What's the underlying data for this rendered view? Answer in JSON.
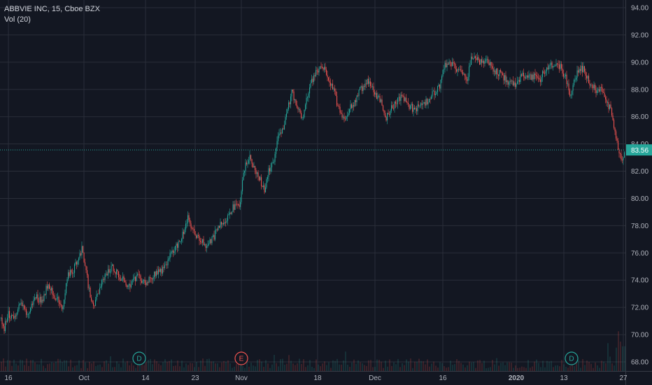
{
  "legend": {
    "symbol_line": "ABBVIE INC, 15, Cboe BZX",
    "volume_line": "Vol (20)"
  },
  "colors": {
    "background": "#131722",
    "grid": "#2a2e39",
    "up": "#26a69a",
    "down": "#ef5350",
    "axis_text": "#b2b5be",
    "price_line": "#26a69a"
  },
  "chart_data": {
    "type": "candlestick",
    "title": "ABBVIE INC, 15, Cboe BZX",
    "y_axis": {
      "ticks": [
        "94.00",
        "92.00",
        "90.00",
        "88.00",
        "86.00",
        "84.00",
        "82.00",
        "80.00",
        "78.00",
        "76.00",
        "74.00",
        "72.00",
        "70.00",
        "68.00"
      ],
      "ylim": [
        67.5,
        94.5
      ],
      "position": "right"
    },
    "x_axis": {
      "ticks": [
        {
          "label": "16",
          "bold": false
        },
        {
          "label": "Oct",
          "bold": false
        },
        {
          "label": "14",
          "bold": false
        },
        {
          "label": "23",
          "bold": false
        },
        {
          "label": "Nov",
          "bold": false
        },
        {
          "label": "18",
          "bold": false
        },
        {
          "label": "Dec",
          "bold": false
        },
        {
          "label": "16",
          "bold": false
        },
        {
          "label": "2020",
          "bold": true
        },
        {
          "label": "13",
          "bold": false
        },
        {
          "label": "27",
          "bold": false
        }
      ]
    },
    "last_price": "83.56",
    "last_price_value": 83.56,
    "grid": true,
    "event_markers": [
      {
        "label": "D",
        "type": "dividend",
        "color": "#26a69a"
      },
      {
        "label": "E",
        "type": "earnings",
        "color": "#ef5350"
      },
      {
        "label": "D",
        "type": "dividend",
        "color": "#26a69a"
      }
    ],
    "price_path_anchors": [
      [
        0,
        71.2
      ],
      [
        5,
        70.2
      ],
      [
        10,
        71.5
      ],
      [
        22,
        71.3
      ],
      [
        30,
        72.5
      ],
      [
        38,
        71.3
      ],
      [
        50,
        72.8
      ],
      [
        60,
        72.5
      ],
      [
        68,
        73.8
      ],
      [
        78,
        72.8
      ],
      [
        90,
        71.9
      ],
      [
        95,
        74.2
      ],
      [
        105,
        74.8
      ],
      [
        112,
        75.8
      ],
      [
        117,
        76.3
      ],
      [
        122,
        74.8
      ],
      [
        127,
        73.2
      ],
      [
        132,
        72.0
      ],
      [
        138,
        72.8
      ],
      [
        148,
        74.2
      ],
      [
        160,
        75.0
      ],
      [
        172,
        74.2
      ],
      [
        183,
        73.6
      ],
      [
        195,
        74.2
      ],
      [
        210,
        73.8
      ],
      [
        220,
        74.5
      ],
      [
        233,
        74.8
      ],
      [
        245,
        76.0
      ],
      [
        258,
        77.0
      ],
      [
        268,
        78.5
      ],
      [
        276,
        77.5
      ],
      [
        285,
        77.0
      ],
      [
        293,
        76.5
      ],
      [
        303,
        77.0
      ],
      [
        313,
        78.0
      ],
      [
        322,
        78.5
      ],
      [
        332,
        79.3
      ],
      [
        342,
        79.5
      ],
      [
        348,
        82.0
      ],
      [
        356,
        83.2
      ],
      [
        364,
        82.0
      ],
      [
        370,
        81.5
      ],
      [
        377,
        80.6
      ],
      [
        383,
        82.0
      ],
      [
        390,
        82.5
      ],
      [
        397,
        84.8
      ],
      [
        405,
        85.2
      ],
      [
        412,
        86.8
      ],
      [
        417,
        87.9
      ],
      [
        425,
        86.5
      ],
      [
        432,
        86.0
      ],
      [
        440,
        87.8
      ],
      [
        448,
        89.0
      ],
      [
        456,
        89.5
      ],
      [
        462,
        89.6
      ],
      [
        469,
        88.7
      ],
      [
        476,
        88.0
      ],
      [
        483,
        86.7
      ],
      [
        491,
        85.9
      ],
      [
        499,
        86.5
      ],
      [
        507,
        87.2
      ],
      [
        515,
        88.0
      ],
      [
        523,
        88.6
      ],
      [
        531,
        88.2
      ],
      [
        538,
        87.5
      ],
      [
        545,
        87.2
      ],
      [
        550,
        85.8
      ],
      [
        558,
        86.5
      ],
      [
        567,
        87.2
      ],
      [
        575,
        87.5
      ],
      [
        583,
        86.9
      ],
      [
        592,
        86.5
      ],
      [
        603,
        86.8
      ],
      [
        612,
        87.2
      ],
      [
        620,
        87.8
      ],
      [
        628,
        88.2
      ],
      [
        635,
        89.7
      ],
      [
        645,
        89.9
      ],
      [
        652,
        89.5
      ],
      [
        660,
        89.3
      ],
      [
        668,
        88.8
      ],
      [
        673,
        90.6
      ],
      [
        680,
        90.2
      ],
      [
        688,
        89.9
      ],
      [
        696,
        90.0
      ],
      [
        705,
        89.5
      ],
      [
        715,
        89.1
      ],
      [
        725,
        88.6
      ],
      [
        735,
        88.3
      ],
      [
        745,
        89.0
      ],
      [
        755,
        88.8
      ],
      [
        762,
        88.9
      ],
      [
        772,
        88.8
      ],
      [
        780,
        89.6
      ],
      [
        790,
        89.9
      ],
      [
        800,
        89.7
      ],
      [
        808,
        88.9
      ],
      [
        815,
        87.6
      ],
      [
        820,
        88.5
      ],
      [
        826,
        89.5
      ],
      [
        833,
        89.5
      ],
      [
        841,
        88.6
      ],
      [
        850,
        88.0
      ],
      [
        858,
        88.0
      ],
      [
        866,
        87.2
      ],
      [
        872,
        86.5
      ],
      [
        878,
        85.0
      ],
      [
        884,
        83.5
      ],
      [
        888,
        83.0
      ],
      [
        892,
        83.2
      ],
      [
        894,
        83.56
      ]
    ]
  }
}
